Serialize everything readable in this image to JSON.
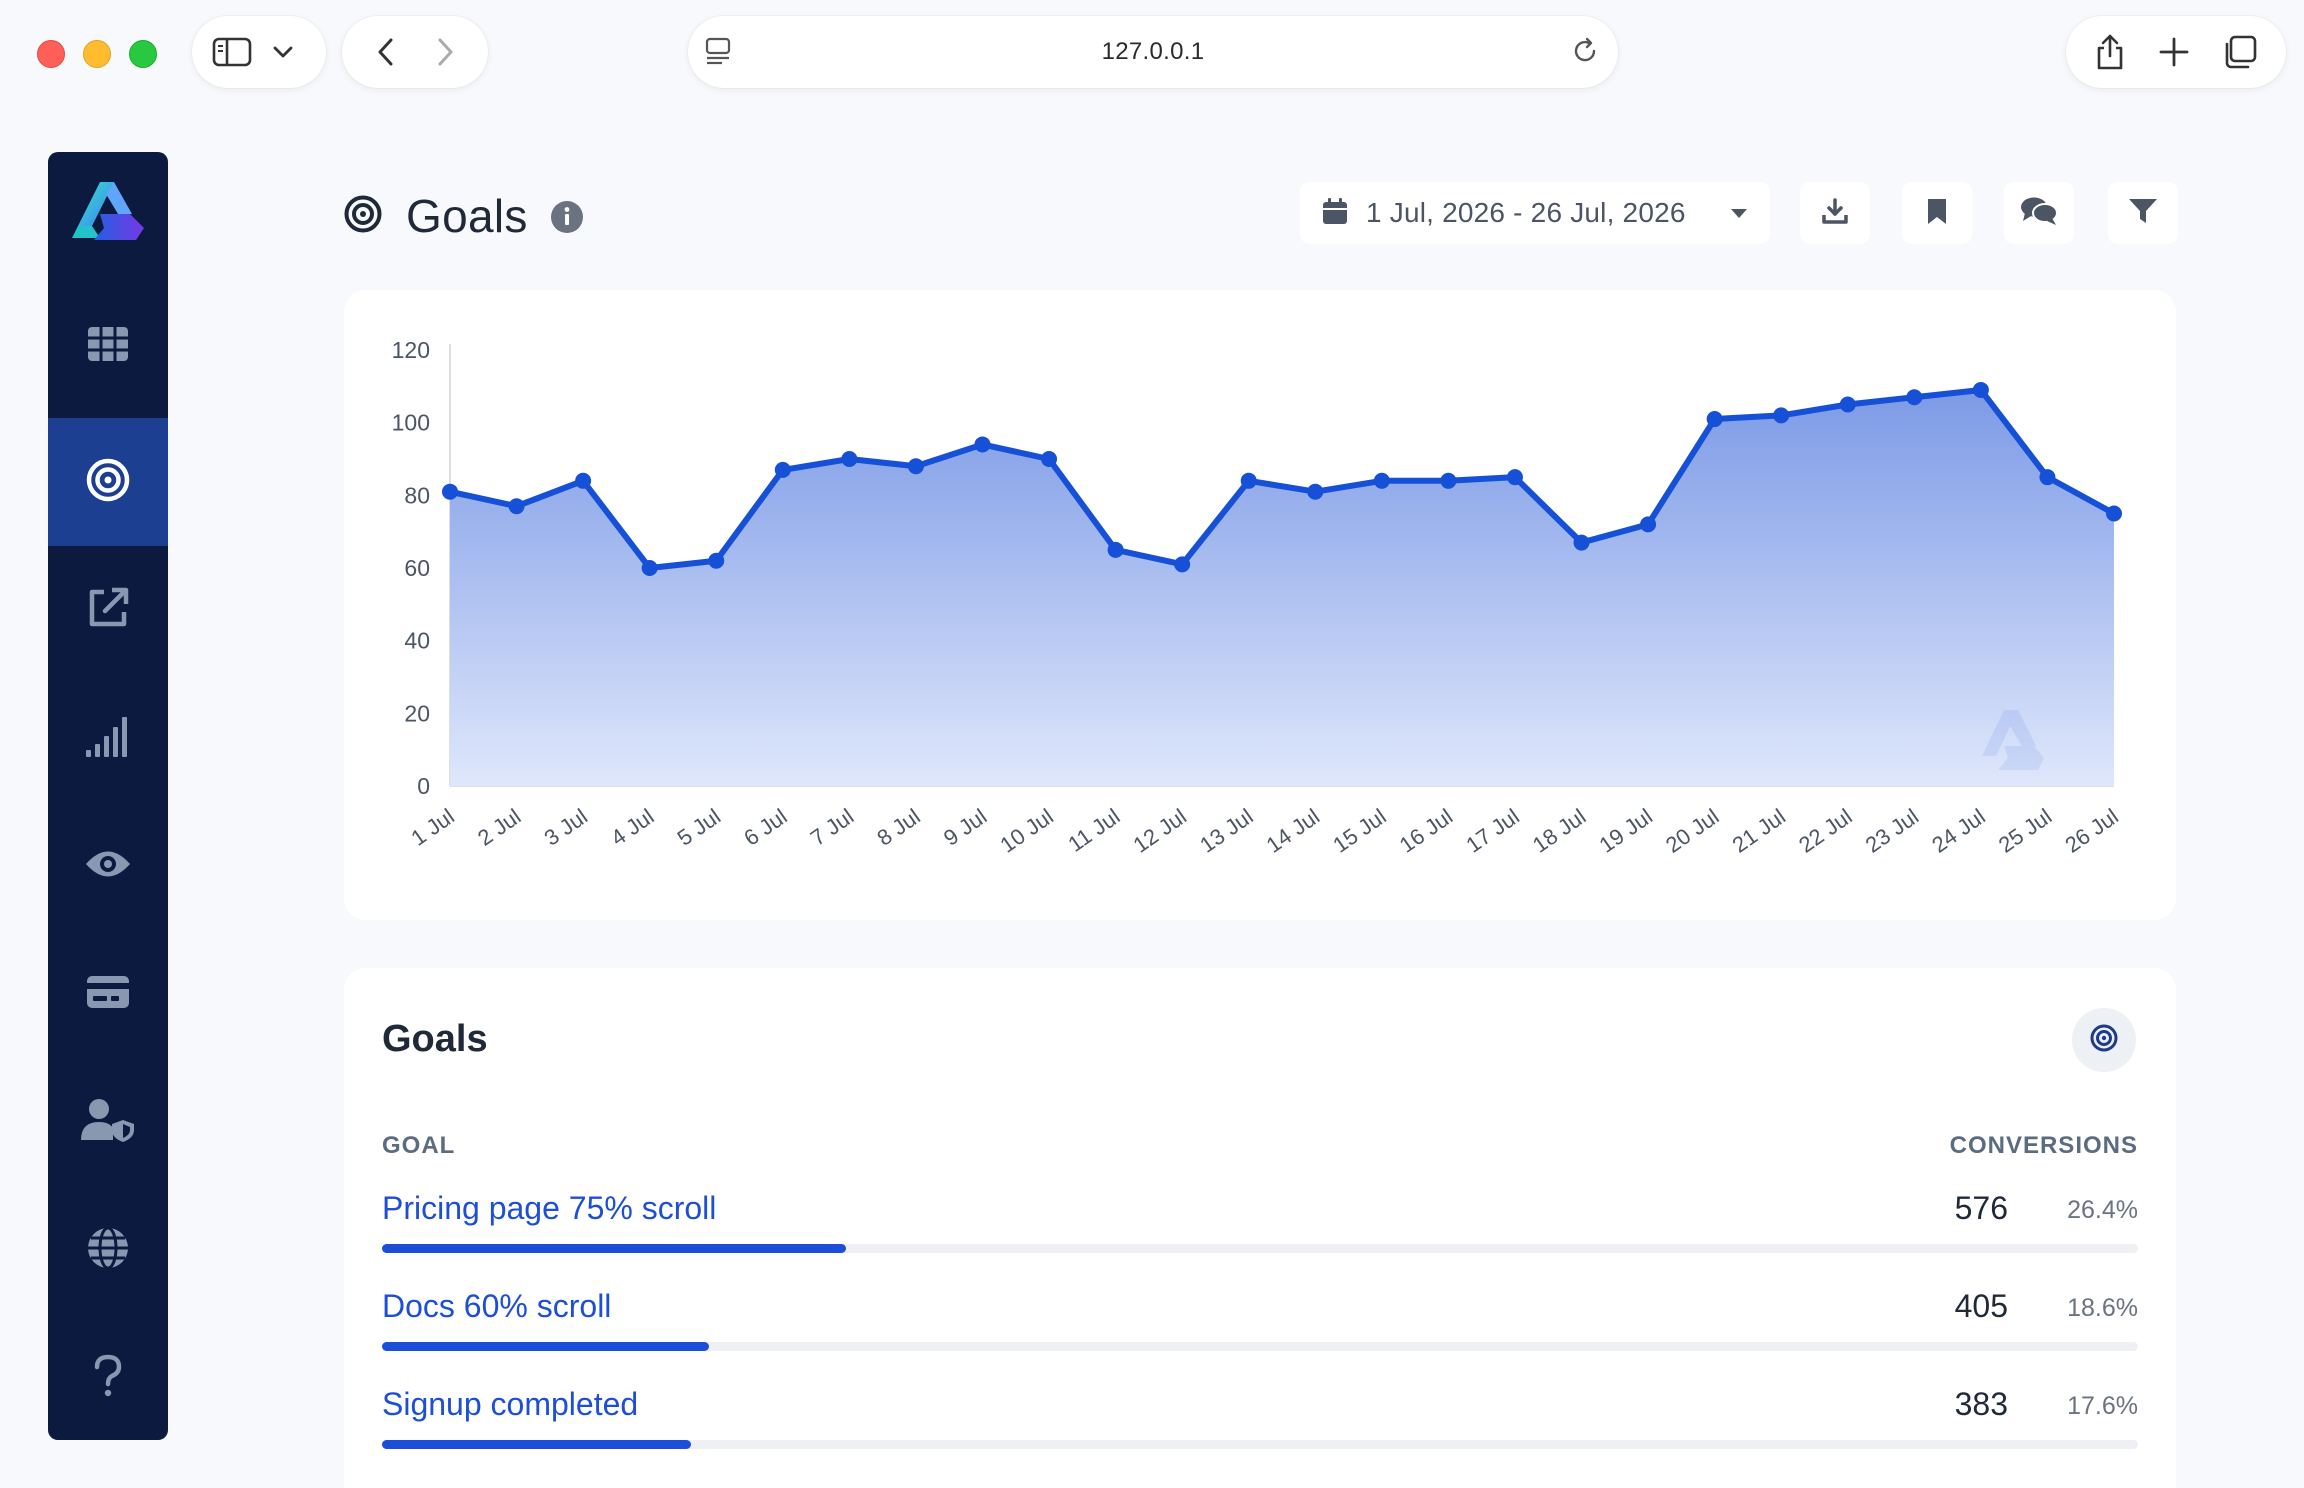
{
  "browser": {
    "url": "127.0.0.1"
  },
  "colors": {
    "accent": "#1d4ed8",
    "sidebar_bg": "#0b1a3e",
    "sidebar_active": "#1c3f91",
    "line": "#1550d6"
  },
  "sidebar": {
    "items": [
      {
        "name": "dashboard",
        "icon": "grid-icon",
        "active": false
      },
      {
        "name": "goals",
        "icon": "target-icon",
        "active": true
      },
      {
        "name": "external-links",
        "icon": "external-link-icon",
        "active": false
      },
      {
        "name": "analytics",
        "icon": "signal-bars-icon",
        "active": false
      },
      {
        "name": "visibility",
        "icon": "eye-icon",
        "active": false
      },
      {
        "name": "billing",
        "icon": "card-icon",
        "active": false
      },
      {
        "name": "users",
        "icon": "user-shield-icon",
        "active": false
      },
      {
        "name": "sites",
        "icon": "globe-icon",
        "active": false
      },
      {
        "name": "help",
        "icon": "question-icon",
        "active": false
      }
    ]
  },
  "header": {
    "title": "Goals",
    "date_range": "1 Jul, 2026 - 26 Jul, 2026"
  },
  "chart_data": {
    "type": "area",
    "categories": [
      "1 Jul",
      "2 Jul",
      "3 Jul",
      "4 Jul",
      "5 Jul",
      "6 Jul",
      "7 Jul",
      "8 Jul",
      "9 Jul",
      "10 Jul",
      "11 Jul",
      "12 Jul",
      "13 Jul",
      "14 Jul",
      "15 Jul",
      "16 Jul",
      "17 Jul",
      "18 Jul",
      "19 Jul",
      "20 Jul",
      "21 Jul",
      "22 Jul",
      "23 Jul",
      "24 Jul",
      "25 Jul",
      "26 Jul"
    ],
    "values": [
      81,
      77,
      84,
      60,
      62,
      87,
      90,
      88,
      94,
      90,
      65,
      61,
      84,
      81,
      84,
      84,
      85,
      67,
      72,
      101,
      102,
      105,
      107,
      109,
      85,
      75
    ],
    "yticks": [
      0,
      20,
      40,
      60,
      80,
      100,
      120
    ],
    "ylim": [
      0,
      120
    ],
    "grid": false,
    "legend": "none"
  },
  "goals": {
    "title": "Goals",
    "col_goal": "GOAL",
    "col_conversions": "CONVERSIONS",
    "rows": [
      {
        "name": "Pricing page 75% scroll",
        "count": "576",
        "pct": "26.4%",
        "fraction": 0.264
      },
      {
        "name": "Docs 60% scroll",
        "count": "405",
        "pct": "18.6%",
        "fraction": 0.186
      },
      {
        "name": "Signup completed",
        "count": "383",
        "pct": "17.6%",
        "fraction": 0.176
      }
    ]
  }
}
